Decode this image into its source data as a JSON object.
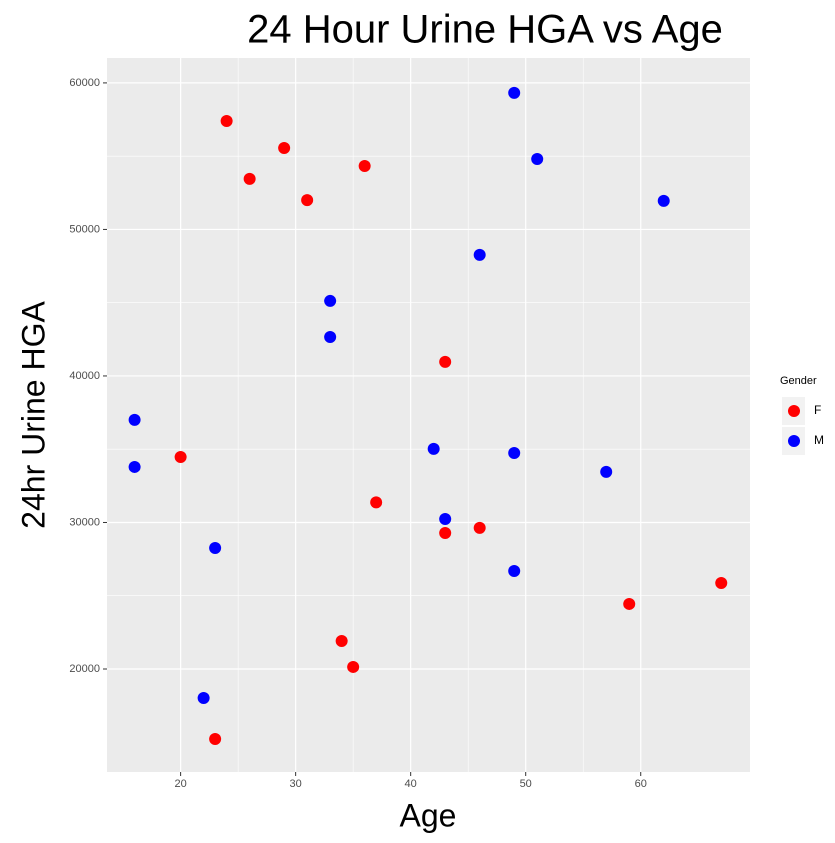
{
  "chart_data": {
    "type": "scatter",
    "title": "24 Hour Urine HGA vs Age",
    "x_label": "Age",
    "y_label": "24hr Urine HGA",
    "legend_title": "Gender",
    "legend": "right",
    "xlim": [
      13.6,
      69.5
    ],
    "xticks": [
      20,
      30,
      40,
      50,
      60
    ],
    "ylim": [
      12970,
      61700
    ],
    "yticks": [
      20000,
      30000,
      40000,
      50000,
      60000
    ],
    "grid": true,
    "series": [
      {
        "name": "F",
        "color": "#ff0000",
        "x": [
          24,
          29,
          26,
          31,
          36,
          43,
          20,
          37,
          43,
          46,
          34,
          35,
          23,
          59,
          67
        ],
        "values": [
          57400,
          55560,
          53450,
          52000,
          54330,
          40960,
          34470,
          31370,
          29280,
          29630,
          21910,
          20140,
          15220,
          24440,
          25870
        ]
      },
      {
        "name": "M",
        "color": "#0000ff",
        "x": [
          49,
          51,
          62,
          46,
          33,
          33,
          16,
          16,
          42,
          49,
          57,
          43,
          23,
          49,
          22
        ],
        "values": [
          59320,
          54810,
          51950,
          48260,
          45120,
          42660,
          37000,
          33790,
          35020,
          34740,
          33450,
          30240,
          28260,
          26690,
          18020
        ]
      }
    ]
  }
}
